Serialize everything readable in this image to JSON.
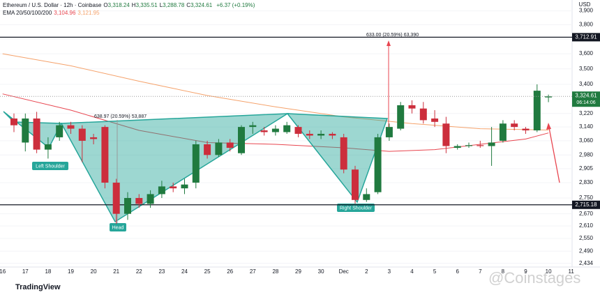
{
  "header": {
    "symbol": "Ethereum / U.S. Dollar · 12h · Coinbase",
    "ohlc": [
      {
        "key": "O",
        "value": "3,318.24"
      },
      {
        "key": "H",
        "value": "3,335.51"
      },
      {
        "key": "L",
        "value": "3,288.78"
      },
      {
        "key": "C",
        "value": "3,324.61"
      }
    ],
    "change": "+6.37 (+0.19%)",
    "ema_label": "EMA 20/50/100/200",
    "ema_values": [
      "3,104.96",
      "3,121.95"
    ]
  },
  "chart_data": {
    "type": "candlestick",
    "y_axis_label": "USD",
    "yscale": "log",
    "ylim": [
      2380,
      3980
    ],
    "yticks": [
      {
        "value": 3900,
        "label": "3,900"
      },
      {
        "value": 3800,
        "label": "3,800"
      },
      {
        "value": 3700,
        "label": "3,700"
      },
      {
        "value": 3600,
        "label": "3,600"
      },
      {
        "value": 3500,
        "label": "3,500"
      },
      {
        "value": 3400,
        "label": "3,400"
      },
      {
        "value": 3220,
        "label": "3,220"
      },
      {
        "value": 3140,
        "label": "3,140"
      },
      {
        "value": 3060,
        "label": "3,060"
      },
      {
        "value": 2980,
        "label": "2,980"
      },
      {
        "value": 2905,
        "label": "2,905"
      },
      {
        "value": 2830,
        "label": "2,830"
      },
      {
        "value": 2750,
        "label": "2,750"
      },
      {
        "value": 2670,
        "label": "2,670"
      },
      {
        "value": 2610,
        "label": "2,610"
      },
      {
        "value": 2550,
        "label": "2,550"
      },
      {
        "value": 2490,
        "label": "2,490"
      },
      {
        "value": 2434,
        "label": "2,434"
      }
    ],
    "x_labels": [
      "16",
      "17",
      "18",
      "19",
      "20",
      "21",
      "22",
      "23",
      "24",
      "25",
      "26",
      "27",
      "28",
      "29",
      "30",
      "Dec",
      "2",
      "3",
      "4",
      "5",
      "6",
      "7",
      "8",
      "9",
      "10",
      "11"
    ],
    "colors": {
      "up": "#207a3f",
      "down": "#cc2e3c"
    },
    "candles": {
      "open": [
        3190,
        3050,
        3190,
        3010,
        3080,
        3150,
        3130,
        3080,
        3140,
        2830,
        2670,
        2750,
        2720,
        2770,
        2810,
        2800,
        2830,
        3040,
        2980,
        3050,
        2990,
        3140,
        3120,
        3110,
        3110,
        3140,
        3100,
        3090,
        3100,
        3080,
        2900,
        2740,
        2780,
        3080,
        3130,
        3270,
        3250,
        3190,
        3160,
        3020,
        3030,
        3035,
        3030,
        3060,
        3160,
        3130,
        3120,
        3318.24
      ],
      "high": [
        3220,
        3220,
        3230,
        3080,
        3170,
        3170,
        3150,
        3100,
        3150,
        2850,
        2780,
        2770,
        2790,
        2840,
        2830,
        2850,
        3060,
        3060,
        3070,
        3070,
        3150,
        3170,
        3140,
        3150,
        3170,
        3150,
        3120,
        3120,
        3110,
        3100,
        2920,
        2800,
        3100,
        3160,
        3290,
        3300,
        3290,
        3240,
        3200,
        3040,
        3050,
        3060,
        3140,
        3180,
        3180,
        3140,
        3400,
        3335.51
      ],
      "low": [
        3110,
        3000,
        2990,
        2960,
        3060,
        3100,
        2940,
        3040,
        2800,
        2620,
        2640,
        2700,
        2700,
        2750,
        2780,
        2770,
        2800,
        2960,
        2970,
        3000,
        2980,
        3100,
        3090,
        3090,
        3100,
        3080,
        3070,
        3070,
        3070,
        2880,
        2720,
        2730,
        2770,
        3060,
        3120,
        3220,
        3160,
        3140,
        2990,
        3010,
        3020,
        3020,
        2920,
        3050,
        3120,
        3100,
        3110,
        3288.78
      ],
      "close": [
        3150,
        3190,
        3010,
        3040,
        3150,
        3130,
        3060,
        3070,
        2830,
        2670,
        2750,
        2720,
        2770,
        2810,
        2800,
        2820,
        3040,
        2980,
        3050,
        3020,
        3140,
        3150,
        3110,
        3130,
        3150,
        3100,
        3090,
        3100,
        3090,
        2900,
        2740,
        2770,
        3080,
        3140,
        3270,
        3250,
        3180,
        3170,
        3030,
        3030,
        3035,
        3030,
        3050,
        3160,
        3140,
        3120,
        3360,
        3324.61
      ]
    },
    "series": [
      {
        "color": "#f5a26b",
        "x": [
          -1,
          5,
          11,
          17,
          23,
          29,
          35,
          41,
          47
        ],
        "values": [
          3600,
          3520,
          3420,
          3330,
          3260,
          3200,
          3160,
          3130,
          3122
        ]
      },
      {
        "color": "#e8454f",
        "x": [
          -1,
          5,
          11,
          17,
          23,
          29,
          33,
          37,
          41,
          45,
          47
        ],
        "values": [
          3340,
          3240,
          3120,
          3050,
          3040,
          3020,
          3000,
          3010,
          3040,
          3070,
          3105
        ]
      }
    ],
    "hlines": [
      {
        "value": 3712.91,
        "label": "3,712.91"
      },
      {
        "value": 2715.18,
        "label": "2,715.18"
      }
    ],
    "last_price": {
      "value": 3324.61,
      "label": "3,324.61",
      "countdown": "06:14:06"
    },
    "annotations": {
      "left_shoulder": "Left Shoulder",
      "head": "Head",
      "right_shoulder": "Right Shoulder",
      "target_left": "638.97 (20.59%) 53,887",
      "target_right": "633.00 (20.59%) 63,390"
    },
    "footer": {
      "logo": "TradingView",
      "watermark": "@Coinstages"
    }
  }
}
